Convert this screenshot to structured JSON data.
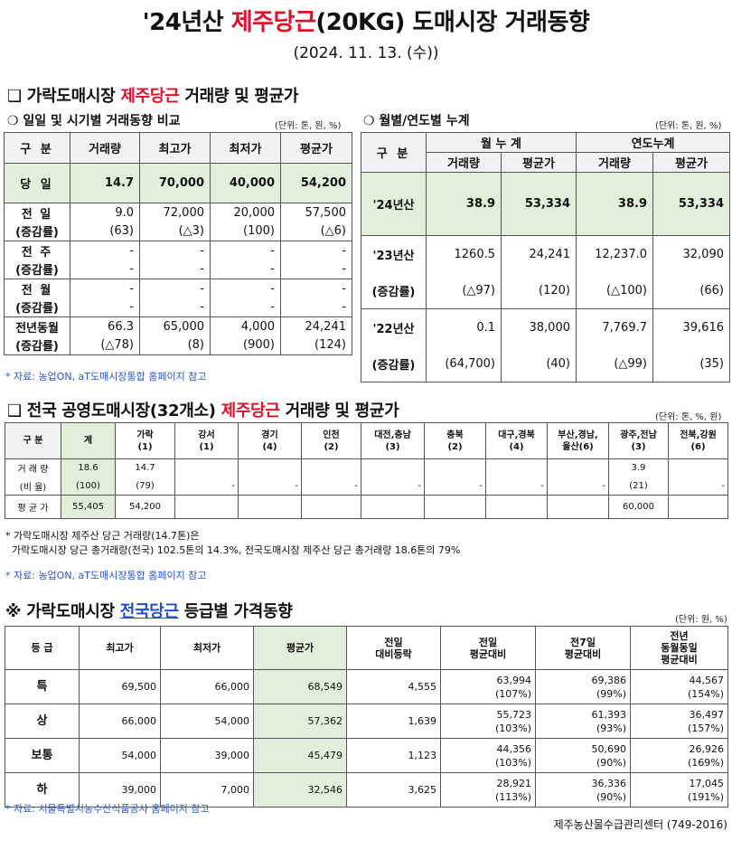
{
  "title": {
    "prefix": "'24년산 ",
    "highlight": "제주당근",
    "suffix": "(20KG) 도매시장 거래동향"
  },
  "date": "(2024. 11. 13. (수))",
  "section1": {
    "bullet": "❑",
    "prefix": " 가락도매시장 ",
    "highlight": "제주당근",
    "suffix": " 거래량 및 평균가"
  },
  "daily": {
    "subtitle": "❍ 일일 및 시기별 거래동향 비교",
    "unit": "(단위: 톤, 원, %)",
    "headers": [
      "구  분",
      "거래량",
      "최고가",
      "최저가",
      "평균가"
    ],
    "today": {
      "label": "당  일",
      "values": [
        "14.7",
        "70,000",
        "40,000",
        "54,200"
      ]
    },
    "rows": [
      {
        "label": "전  일",
        "sub": "(증감률)",
        "values": [
          "9.0",
          "72,000",
          "20,000",
          "57,500"
        ],
        "changes": [
          "(63)",
          "(△3)",
          "(100)",
          "(△6)"
        ]
      },
      {
        "label": "전  주",
        "sub": "(증감률)",
        "values": [
          "-",
          "-",
          "-",
          "-"
        ],
        "changes": [
          "-",
          "-",
          "-",
          "-"
        ]
      },
      {
        "label": "전  월",
        "sub": "(증감률)",
        "values": [
          "-",
          "-",
          "-",
          "-"
        ],
        "changes": [
          "-",
          "-",
          "-",
          "-"
        ]
      },
      {
        "label": "전년동월",
        "sub": "(증감률)",
        "values": [
          "66.3",
          "65,000",
          "4,000",
          "24,241"
        ],
        "changes": [
          "(△78)",
          "(8)",
          "(900)",
          "(124)"
        ]
      }
    ]
  },
  "monthly": {
    "subtitle": "❍ 월별/연도별 누계",
    "unit": "(단위: 톤, 원, %)",
    "label": "구  분",
    "groups": [
      "월 누 계",
      "연도누계"
    ],
    "headers": [
      "거래량",
      "평균가",
      "거래량",
      "평균가"
    ],
    "y24": {
      "label": "'24년산",
      "values": [
        "38.9",
        "53,334",
        "38.9",
        "53,334"
      ]
    },
    "rows": [
      {
        "label": "'23년산",
        "sub": "(증감률)",
        "values": [
          "1260.5",
          "24,241",
          "12,237.0",
          "32,090"
        ],
        "changes": [
          "(△97)",
          "(120)",
          "(△100)",
          "(66)"
        ]
      },
      {
        "label": "'22년산",
        "sub": "(증감률)",
        "values": [
          "0.1",
          "38,000",
          "7,769.7",
          "39,616"
        ],
        "changes": [
          "(64,700)",
          "(40)",
          "(△99)",
          "(35)"
        ]
      }
    ]
  },
  "note1": "* 자료: 농업ON, aT도매시장통합 홈페이지 참고",
  "section2": {
    "bullet": "❑",
    "prefix": " 전국 공영도매시장(32개소) ",
    "highlight": "제주당근",
    "suffix": " 거래량 및 평균가"
  },
  "national": {
    "unit": "(단위: 톤, %, 원)",
    "headers": [
      {
        "name": "구  분",
        "count": ""
      },
      {
        "name": "계",
        "count": ""
      },
      {
        "name": "가락",
        "count": "(1)"
      },
      {
        "name": "강서",
        "count": "(1)"
      },
      {
        "name": "경기",
        "count": "(4)"
      },
      {
        "name": "인천",
        "count": "(2)"
      },
      {
        "name": "대전,충남",
        "count": "(3)"
      },
      {
        "name": "충북",
        "count": "(2)"
      },
      {
        "name": "대구,경북",
        "count": "(4)"
      },
      {
        "name": "부산,경남,",
        "count": "울산(6)"
      },
      {
        "name": "광주,전남",
        "count": "(3)"
      },
      {
        "name": "전북,강원",
        "count": "(6)"
      }
    ],
    "volume_label": "거 래 량",
    "volume": [
      "18.6",
      "14.7",
      "",
      "",
      "",
      "",
      "",
      "",
      "",
      "3.9",
      ""
    ],
    "ratio_label": "(비 율)",
    "ratio": [
      "(100)",
      "(79)",
      "-",
      "-",
      "-",
      "-",
      "-",
      "-",
      "-",
      "(21)",
      "-"
    ],
    "price_label": "평 균 가",
    "price": [
      "55,405",
      "54,200",
      "",
      "",
      "",
      "",
      "",
      "",
      "",
      "60,000",
      ""
    ]
  },
  "note2_line1": "* 가락도매시장 제주산 당근 거래량(14.7톤)은",
  "note2_line2": "  가락도매시장 당근 총거래량(전국) 102.5톤의 14.3%, 전국도매시장 제주산 당근 총거래량 18.6톤의 79%",
  "note3": "* 자료: 농업ON, aT도매시장통합 홈페이지 참고",
  "section3": {
    "bullet": "※",
    "prefix": " 가락도매시장 ",
    "highlight": "전국당근",
    "suffix": " 등급별 가격동향"
  },
  "grades": {
    "unit": "(단위: 원, %)",
    "headers": [
      {
        "l1": "등  급",
        "l2": "",
        "l3": ""
      },
      {
        "l1": "최고가",
        "l2": "",
        "l3": ""
      },
      {
        "l1": "최저가",
        "l2": "",
        "l3": ""
      },
      {
        "l1": "평균가",
        "l2": "",
        "l3": ""
      },
      {
        "l1": "전일",
        "l2": "대비등락",
        "l3": ""
      },
      {
        "l1": "전일",
        "l2": "평균대비",
        "l3": ""
      },
      {
        "l1": "전7일",
        "l2": "평균대비",
        "l3": ""
      },
      {
        "l1": "전년",
        "l2": "동월동일",
        "l3": "평균대비"
      }
    ],
    "rows": [
      {
        "grade": "특",
        "max": "69,500",
        "min": "66,000",
        "avg": "68,549",
        "diff": "4,555",
        "prev_day": "63,994",
        "prev_day_pct": "(107%)",
        "prev7": "69,386",
        "prev7_pct": "(99%)",
        "prev_year": "44,567",
        "prev_year_pct": "(154%)"
      },
      {
        "grade": "상",
        "max": "66,000",
        "min": "54,000",
        "avg": "57,362",
        "diff": "1,639",
        "prev_day": "55,723",
        "prev_day_pct": "(103%)",
        "prev7": "61,393",
        "prev7_pct": "(93%)",
        "prev_year": "36,497",
        "prev_year_pct": "(157%)"
      },
      {
        "grade": "보통",
        "max": "54,000",
        "min": "39,000",
        "avg": "45,479",
        "diff": "1,123",
        "prev_day": "44,356",
        "prev_day_pct": "(103%)",
        "prev7": "50,690",
        "prev7_pct": "(90%)",
        "prev_year": "26,926",
        "prev_year_pct": "(169%)"
      },
      {
        "grade": "하",
        "max": "39,000",
        "min": "7,000",
        "avg": "32,546",
        "diff": "3,625",
        "prev_day": "28,921",
        "prev_day_pct": "(113%)",
        "prev7": "36,336",
        "prev7_pct": "(90%)",
        "prev_year": "17,045",
        "prev_year_pct": "(191%)"
      }
    ]
  },
  "note4": "* 자료: 서울특별시농수산식품공사 홈페이지 참고",
  "footer": "제주농산물수급관리센터 (749-2016)"
}
